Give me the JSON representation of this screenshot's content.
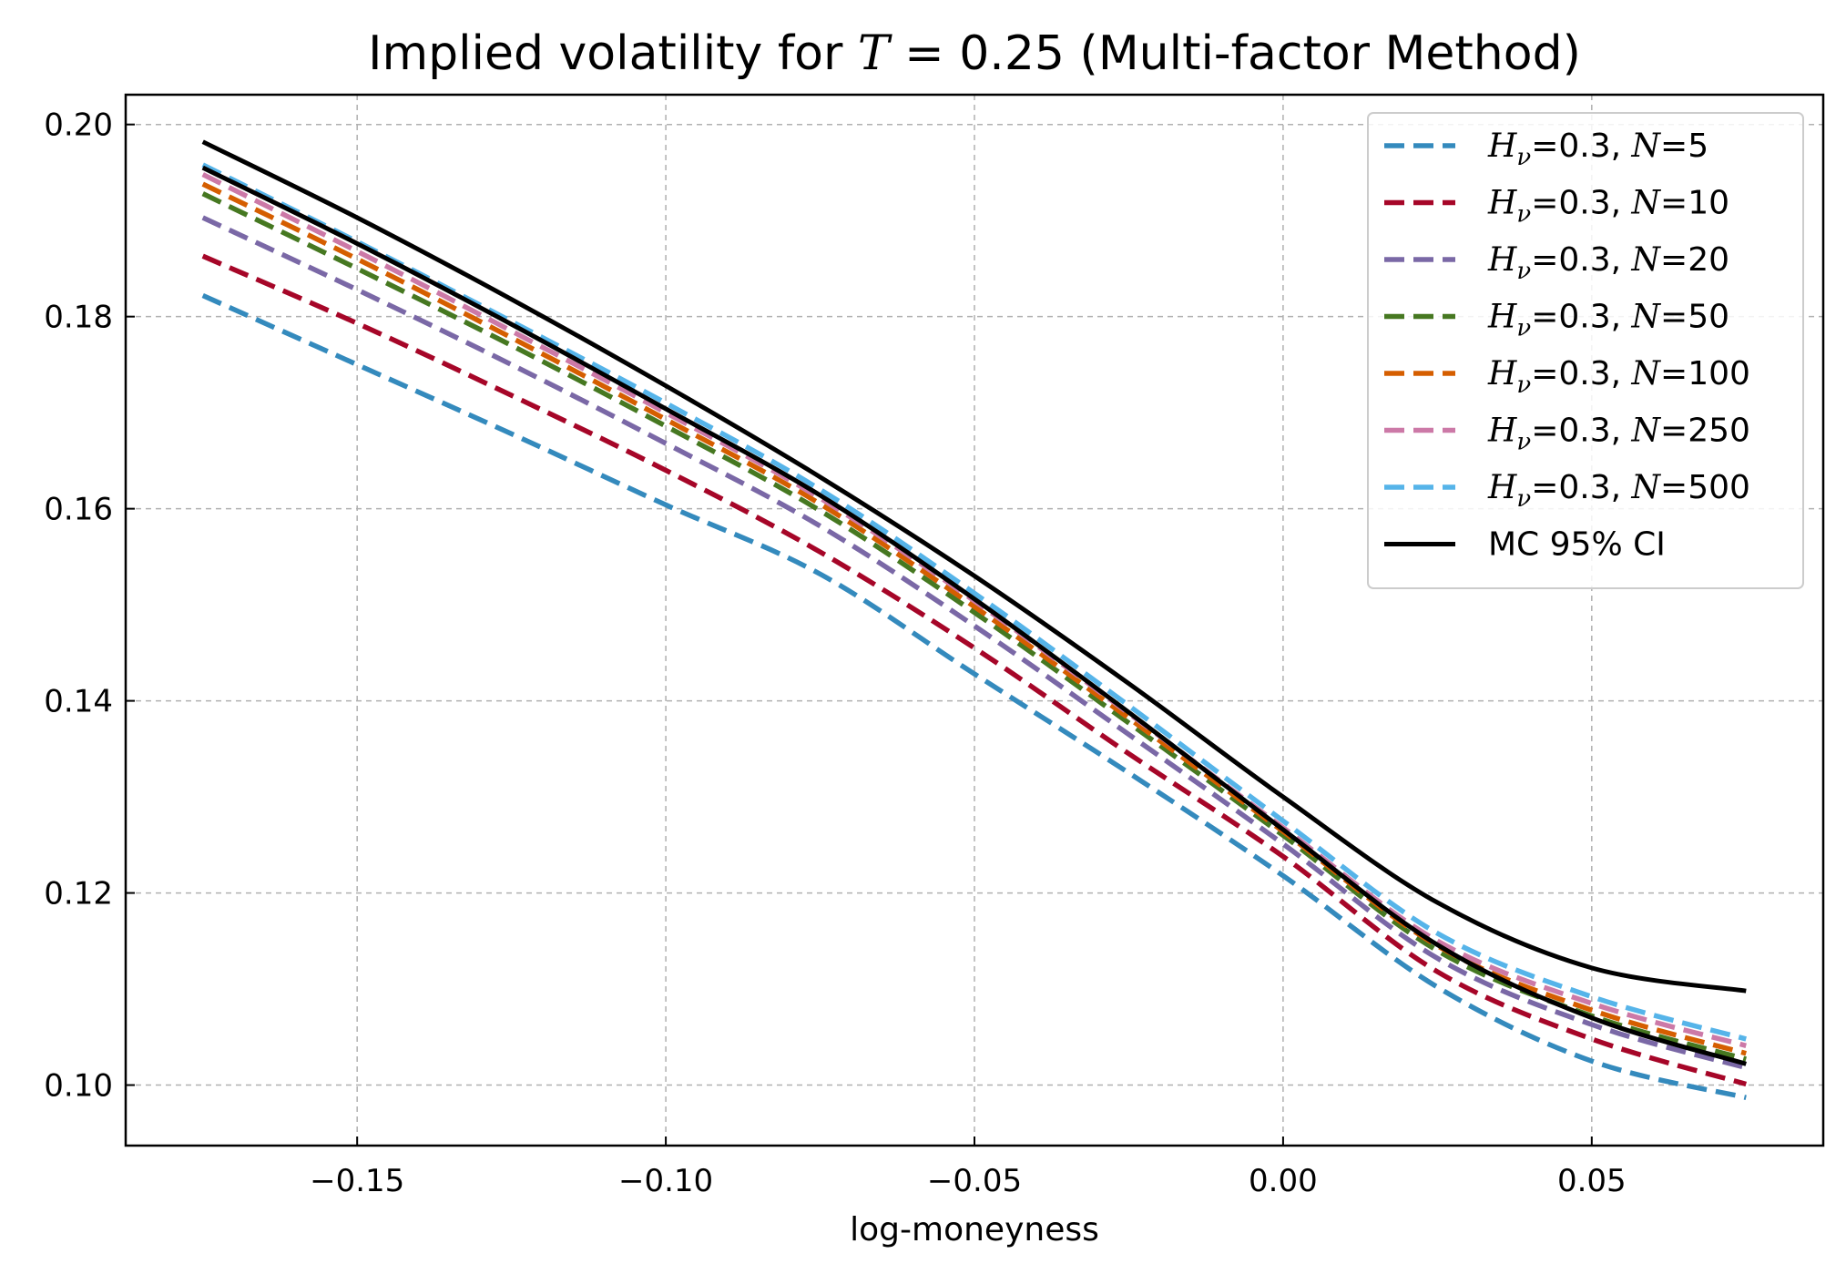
{
  "chart_data": {
    "type": "line",
    "title_prefix": "Implied volatility for ",
    "title_var": "T",
    "title_eq": " = ",
    "title_value": "0.25",
    "title_suffix": " (Multi-factor Method)",
    "xlabel": "log-moneyness",
    "ylabel": "",
    "xlim": [
      -0.1875,
      0.0875
    ],
    "ylim": [
      0.0937,
      0.2031
    ],
    "xticks": [
      -0.15,
      -0.1,
      -0.05,
      0.0,
      0.05
    ],
    "xtick_labels": [
      "−0.15",
      "−0.10",
      "−0.05",
      "0.00",
      "0.05"
    ],
    "yticks": [
      0.1,
      0.12,
      0.14,
      0.16,
      0.18,
      0.2
    ],
    "ytick_labels": [
      "0.10",
      "0.12",
      "0.14",
      "0.16",
      "0.18",
      "0.20"
    ],
    "grid": true,
    "legend_position": "top-right",
    "x": [
      -0.175,
      -0.15,
      -0.125,
      -0.1,
      -0.075,
      -0.05,
      -0.025,
      0.0,
      0.025,
      0.05,
      0.075
    ],
    "series": [
      {
        "name": "H_nu=0.3, N=5",
        "legend_sym": "H",
        "legend_sub": "ν",
        "legend_eq": "=0.3, ",
        "legend_n": "N",
        "legend_val": "=5",
        "color": "#348abd",
        "style": "dashed",
        "values": [
          0.1822,
          0.175,
          0.1678,
          0.1604,
          0.1532,
          0.1428,
          0.1325,
          0.1218,
          0.1102,
          0.1025,
          0.0987
        ]
      },
      {
        "name": "H_nu=0.3, N=10",
        "legend_sym": "H",
        "legend_sub": "ν",
        "legend_eq": "=0.3, ",
        "legend_n": "N",
        "legend_val": "=10",
        "color": "#a60628",
        "style": "dashed",
        "values": [
          0.1863,
          0.1793,
          0.1718,
          0.164,
          0.1555,
          0.1455,
          0.1345,
          0.1238,
          0.1118,
          0.1048,
          0.1001
        ]
      },
      {
        "name": "H_nu=0.3, N=20",
        "legend_sym": "H",
        "legend_sub": "ν",
        "legend_eq": "=0.3, ",
        "legend_n": "N",
        "legend_val": "=20",
        "color": "#7a68a6",
        "style": "dashed",
        "values": [
          0.1903,
          0.1828,
          0.175,
          0.1668,
          0.1582,
          0.1478,
          0.1365,
          0.1251,
          0.1132,
          0.1063,
          0.1018
        ]
      },
      {
        "name": "H_nu=0.3, N=50",
        "legend_sym": "H",
        "legend_sub": "ν",
        "legend_eq": "=0.3, ",
        "legend_n": "N",
        "legend_val": "=50",
        "color": "#467821",
        "style": "dashed",
        "values": [
          0.1928,
          0.185,
          0.177,
          0.1686,
          0.1598,
          0.1492,
          0.1377,
          0.126,
          0.114,
          0.1072,
          0.1027
        ]
      },
      {
        "name": "H_nu=0.3, N=100",
        "legend_sym": "H",
        "legend_sub": "ν",
        "legend_eq": "=0.3, ",
        "legend_n": "N",
        "legend_val": "=100",
        "color": "#d55e00",
        "style": "dashed",
        "values": [
          0.1938,
          0.186,
          0.1778,
          0.1693,
          0.1605,
          0.1498,
          0.1382,
          0.1264,
          0.1145,
          0.1078,
          0.1033
        ]
      },
      {
        "name": "H_nu=0.3, N=250",
        "legend_sym": "H",
        "legend_sub": "ν",
        "legend_eq": "=0.3, ",
        "legend_n": "N",
        "legend_val": "=250",
        "color": "#cc79a7",
        "style": "dashed",
        "values": [
          0.1948,
          0.1868,
          0.1785,
          0.17,
          0.1611,
          0.1504,
          0.1387,
          0.1268,
          0.115,
          0.1085,
          0.1041
        ]
      },
      {
        "name": "H_nu=0.3, N=500",
        "legend_sym": "H",
        "legend_sub": "ν",
        "legend_eq": "=0.3, ",
        "legend_n": "N",
        "legend_val": "=500",
        "color": "#56b4e9",
        "style": "dashed",
        "values": [
          0.1958,
          0.1878,
          0.1795,
          0.171,
          0.162,
          0.1512,
          0.1395,
          0.1275,
          0.1158,
          0.1092,
          0.1048
        ]
      },
      {
        "name": "MC 95% CI (upper)",
        "color": "#000000",
        "style": "solid",
        "values": [
          0.1982,
          0.1903,
          0.1818,
          0.1728,
          0.1633,
          0.153,
          0.1418,
          0.13,
          0.119,
          0.1122,
          0.1098
        ]
      },
      {
        "name": "MC 95% CI (lower)",
        "color": "#000000",
        "style": "solid",
        "values": [
          0.1955,
          0.1876,
          0.1792,
          0.1704,
          0.1614,
          0.1506,
          0.1388,
          0.1266,
          0.1146,
          0.107,
          0.1022
        ]
      }
    ],
    "legend_entries": [
      {
        "series_index": 0
      },
      {
        "series_index": 1
      },
      {
        "series_index": 2
      },
      {
        "series_index": 3
      },
      {
        "series_index": 4
      },
      {
        "series_index": 5
      },
      {
        "series_index": 6
      },
      {
        "series_index": 7,
        "label": "MC 95% CI"
      }
    ]
  }
}
